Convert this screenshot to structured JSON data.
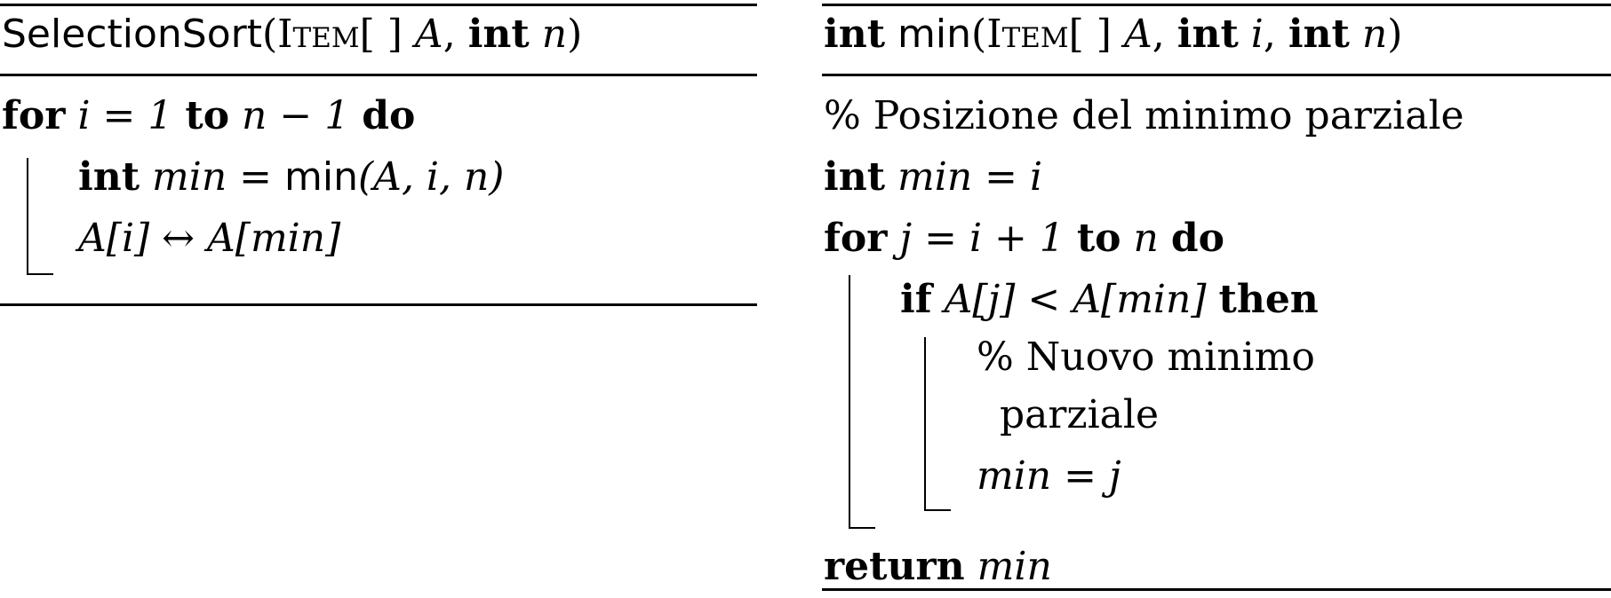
{
  "selection_sort": {
    "header": {
      "name": "SelectionSort",
      "open": "(",
      "type": "Item",
      "brackets": "[ ]",
      "param_a": "A",
      "comma1": ",",
      "kw_int": "int",
      "param_n": "n",
      "close": ")"
    },
    "line1": {
      "kw_for": "for",
      "expr": "i = 1",
      "kw_to": "to",
      "bound": "n − 1",
      "kw_do": "do"
    },
    "line2": {
      "kw_int": "int",
      "var": "min",
      "eq": " = ",
      "func": "min",
      "args": "(A, i, n)"
    },
    "line3": {
      "text": "A[i] ↔ A[min]"
    }
  },
  "min_func": {
    "header": {
      "kw_int_ret": "int",
      "name": "min",
      "open": "(",
      "type": "Item",
      "brackets": "[ ]",
      "param_a": "A",
      "comma1": ",",
      "kw_int1": "int",
      "param_i": "i",
      "comma2": ",",
      "kw_int2": "int",
      "param_n": "n",
      "close": ")"
    },
    "comment1": "% Posizione del minimo parziale",
    "line_init": {
      "kw_int": "int",
      "expr": "min = i"
    },
    "line_for": {
      "kw_for": "for",
      "expr": "j = i + 1",
      "kw_to": "to",
      "bound": "n",
      "kw_do": "do"
    },
    "line_if": {
      "kw_if": "if",
      "cond": "A[j] < A[min]",
      "kw_then": "then"
    },
    "comment2_a": "% Nuovo minimo",
    "comment2_b": "parziale",
    "line_assign": "min = j",
    "line_return": {
      "kw_return": "return",
      "var": "min"
    }
  }
}
